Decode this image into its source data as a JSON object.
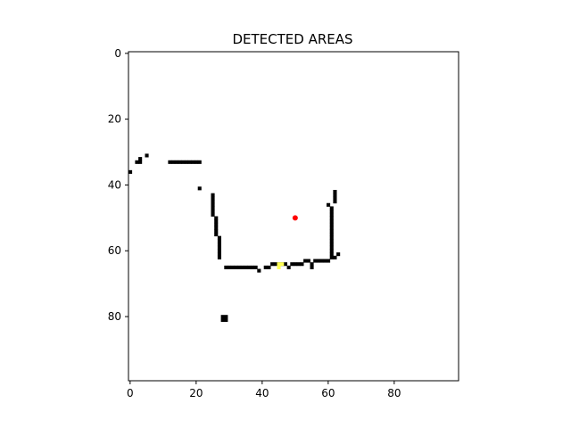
{
  "chart_data": {
    "type": "heatmap",
    "title": "DETECTED AREAS",
    "xlabel": "",
    "ylabel": "",
    "grid_size": [
      100,
      100
    ],
    "xlim": [
      -0.5,
      99.5
    ],
    "ylim": [
      99.5,
      -0.5
    ],
    "y_axis_inverted": true,
    "xticks": [
      0,
      20,
      40,
      60,
      80
    ],
    "yticks": [
      0,
      20,
      40,
      60,
      80
    ],
    "background_color": "#ffffff",
    "cell_color": "#000000",
    "occupied_cells": [
      [
        0,
        36
      ],
      [
        2,
        33
      ],
      [
        3,
        33
      ],
      [
        3,
        32
      ],
      [
        5,
        31
      ],
      [
        12,
        33
      ],
      [
        13,
        33
      ],
      [
        14,
        33
      ],
      [
        15,
        33
      ],
      [
        16,
        33
      ],
      [
        17,
        33
      ],
      [
        18,
        33
      ],
      [
        19,
        33
      ],
      [
        20,
        33
      ],
      [
        21,
        33
      ],
      [
        21,
        41
      ],
      [
        25,
        43
      ],
      [
        25,
        44
      ],
      [
        25,
        45
      ],
      [
        25,
        46
      ],
      [
        25,
        47
      ],
      [
        25,
        48
      ],
      [
        25,
        49
      ],
      [
        26,
        50
      ],
      [
        26,
        51
      ],
      [
        26,
        52
      ],
      [
        26,
        53
      ],
      [
        26,
        54
      ],
      [
        26,
        55
      ],
      [
        27,
        56
      ],
      [
        27,
        57
      ],
      [
        27,
        58
      ],
      [
        27,
        59
      ],
      [
        27,
        60
      ],
      [
        27,
        61
      ],
      [
        27,
        62
      ],
      [
        29,
        65
      ],
      [
        30,
        65
      ],
      [
        31,
        65
      ],
      [
        32,
        65
      ],
      [
        33,
        65
      ],
      [
        34,
        65
      ],
      [
        35,
        65
      ],
      [
        36,
        65
      ],
      [
        37,
        65
      ],
      [
        38,
        65
      ],
      [
        39,
        66
      ],
      [
        41,
        65
      ],
      [
        42,
        65
      ],
      [
        43,
        64
      ],
      [
        44,
        64
      ],
      [
        45,
        64
      ],
      [
        46,
        64
      ],
      [
        47,
        64
      ],
      [
        48,
        65
      ],
      [
        49,
        64
      ],
      [
        50,
        64
      ],
      [
        51,
        64
      ],
      [
        52,
        64
      ],
      [
        53,
        63
      ],
      [
        54,
        63
      ],
      [
        55,
        64
      ],
      [
        55,
        65
      ],
      [
        56,
        63
      ],
      [
        57,
        63
      ],
      [
        58,
        63
      ],
      [
        59,
        63
      ],
      [
        60,
        63
      ],
      [
        61,
        62
      ],
      [
        62,
        62
      ],
      [
        63,
        61
      ],
      [
        60,
        46
      ],
      [
        61,
        47
      ],
      [
        61,
        48
      ],
      [
        61,
        49
      ],
      [
        61,
        50
      ],
      [
        61,
        51
      ],
      [
        61,
        52
      ],
      [
        61,
        53
      ],
      [
        61,
        54
      ],
      [
        61,
        55
      ],
      [
        61,
        56
      ],
      [
        61,
        57
      ],
      [
        61,
        58
      ],
      [
        61,
        59
      ],
      [
        61,
        60
      ],
      [
        61,
        61
      ],
      [
        62,
        42
      ],
      [
        62,
        43
      ],
      [
        62,
        44
      ],
      [
        62,
        45
      ]
    ],
    "double_cells": [
      [
        28,
        80
      ]
    ],
    "highlight_cells": [
      [
        45,
        65
      ],
      [
        46,
        64
      ],
      [
        45,
        64
      ]
    ],
    "highlight_color": "#ffff55",
    "point_markers": [
      {
        "x": 50,
        "y": 50,
        "color": "#ff0000"
      }
    ]
  }
}
